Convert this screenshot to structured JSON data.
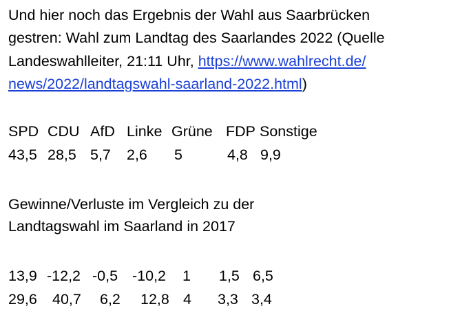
{
  "intro": {
    "line1": "Und hier noch das Ergebnis der Wahl aus Saarbrücken",
    "line2": "gestren: Wahl zum Landtag des Saarlandes 2022 (Quelle",
    "line3_text": "Landeswahlleiter, 21:11 Uhr, ",
    "link_part1": "https://www.wahlrecht.de/",
    "link_part2": "news/2022/landtagswahl-saarland-2022.html",
    "line4_end": ")"
  },
  "results": {
    "parties": [
      "SPD",
      "CDU",
      "AfD",
      "Linke",
      "Grüne",
      "FDP",
      "Sonstige"
    ],
    "values": [
      "43,5",
      "28,5",
      "5,7",
      "2,6",
      "5",
      "4,8",
      "9,9"
    ]
  },
  "comparison": {
    "line1": "Gewinne/Verluste im Vergleich zu der",
    "line2": "Landtagswahl im Saarland in 2017",
    "changes": [
      "13,9",
      "-12,2",
      "-0,5",
      "-10,2",
      "1",
      "1,5",
      "6,5"
    ],
    "previous": [
      "29,6",
      "40,7",
      "6,2",
      "12,8",
      "4",
      "3,3",
      "3,4"
    ]
  },
  "colors": {
    "link": "#1a3fd6"
  }
}
